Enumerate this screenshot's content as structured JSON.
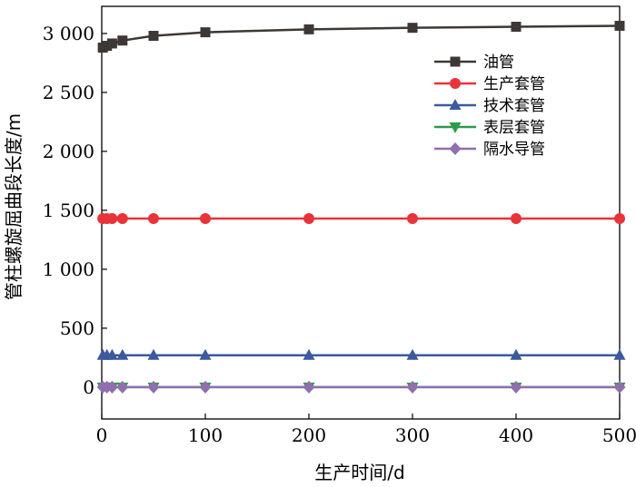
{
  "chart_data": {
    "type": "line",
    "title": "",
    "xlabel": "生产时间/d",
    "ylabel": "管柱螺旋屈曲段长度/m",
    "xlim": [
      0,
      500
    ],
    "ylim": [
      -270,
      3230
    ],
    "xticks": [
      0,
      100,
      200,
      300,
      400,
      500
    ],
    "xtick_labels": [
      "0",
      "100",
      "200",
      "300",
      "400",
      "500"
    ],
    "yticks": [
      0,
      500,
      1000,
      1500,
      2000,
      2500,
      3000
    ],
    "ytick_labels": [
      "0",
      "500",
      "1 000",
      "1 500",
      "2 000",
      "2 500",
      "3 000"
    ],
    "grid": false,
    "legend_position": "upper-right",
    "x": [
      1,
      5,
      10,
      20,
      50,
      100,
      200,
      300,
      400,
      500
    ],
    "series": [
      {
        "name": "油管",
        "color": "#3d3836",
        "marker": "square",
        "values": [
          2880,
          2895,
          2915,
          2940,
          2980,
          3010,
          3035,
          3048,
          3057,
          3065
        ]
      },
      {
        "name": "生产套管",
        "color": "#e8333a",
        "marker": "circle",
        "values": [
          1430,
          1430,
          1430,
          1430,
          1430,
          1430,
          1430,
          1430,
          1430,
          1430
        ]
      },
      {
        "name": "技术套管",
        "color": "#3a5a9c",
        "marker": "triangle-up",
        "values": [
          270,
          270,
          270,
          270,
          270,
          270,
          270,
          270,
          270,
          270
        ]
      },
      {
        "name": "表层套管",
        "color": "#2e9a4a",
        "marker": "triangle-down",
        "values": [
          0,
          0,
          0,
          0,
          0,
          0,
          0,
          0,
          0,
          0
        ]
      },
      {
        "name": "隔水导管",
        "color": "#8f6fae",
        "marker": "diamond",
        "values": [
          0,
          0,
          0,
          0,
          0,
          0,
          0,
          0,
          0,
          0
        ]
      }
    ]
  }
}
